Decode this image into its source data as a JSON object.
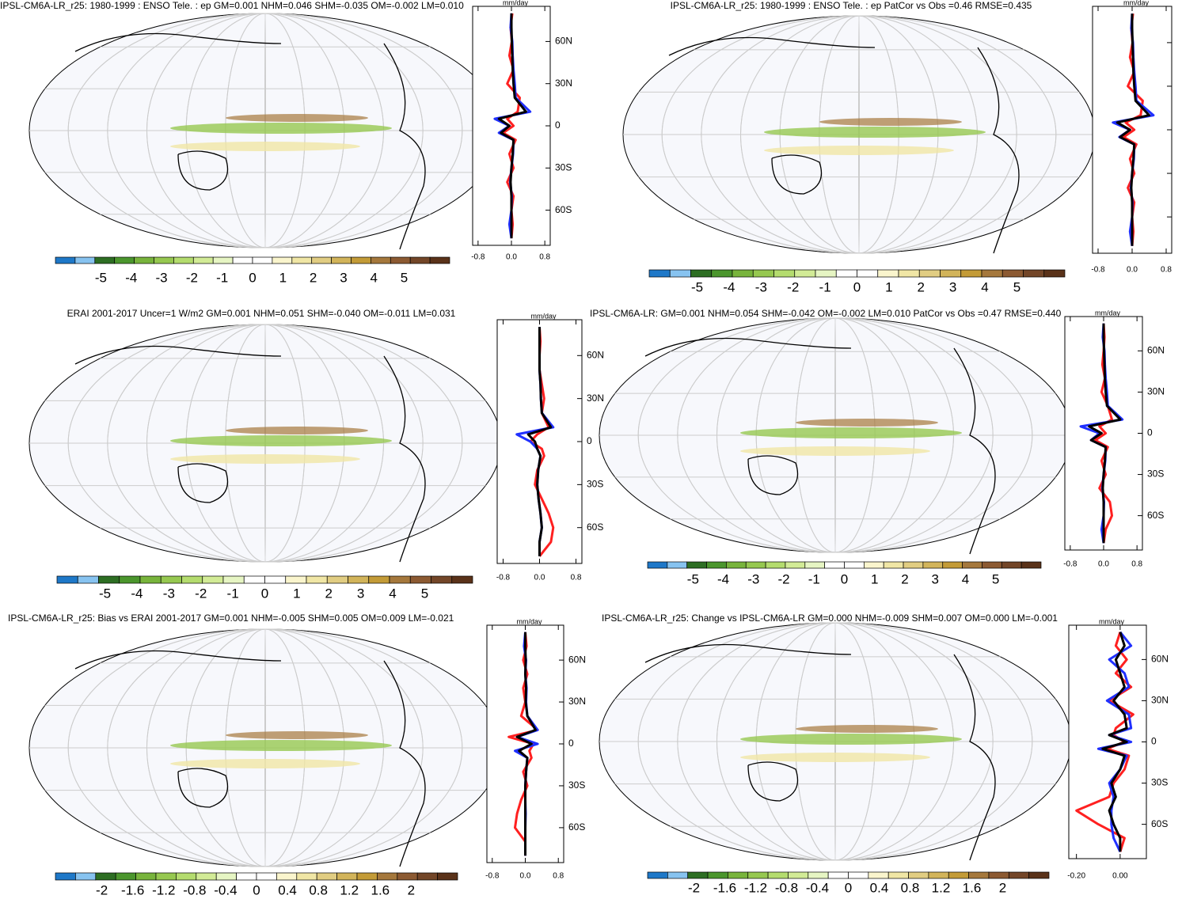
{
  "colorbar_colors": [
    "#1e78c8",
    "#87c3f0",
    "#2d6e23",
    "#4b962d",
    "#78b43c",
    "#96c850",
    "#b4dc6e",
    "#d2eb96",
    "#e6f5c3",
    "#ffffff",
    "#ffffff",
    "#faf5cd",
    "#f0e6a5",
    "#e1cd82",
    "#d2b45a",
    "#c39b37",
    "#a5783c",
    "#8c5a32",
    "#734628",
    "#5a3219"
  ],
  "lat": [
    80,
    70,
    60,
    50,
    40,
    30,
    20,
    10,
    5,
    0,
    -5,
    -10,
    -20,
    -30,
    -40,
    -50,
    -60,
    -70,
    -80
  ],
  "panels": [
    {
      "title": "IPSL-CM6A-LR_r25: 1980-1999 : ENSO Tele. : ep GM=0.001 NHM=0.046 SHM=-0.035 OM=-0.002 LM=0.010",
      "colorbar_labels": [
        -5,
        -4,
        -3,
        -2,
        -1,
        0,
        1,
        2,
        3,
        4,
        5
      ],
      "zonal": {
        "type": "line",
        "unit": "mm/day",
        "xlim": [
          -0.93,
          0.93
        ],
        "ylim": [
          -85,
          85
        ],
        "xticks": [
          -0.8,
          {
            "value": 0,
            "label": "0.0"
          },
          0.8
        ],
        "yticks": [
          {
            "value": 60,
            "label": "60N"
          },
          {
            "value": 30,
            "label": "30N"
          },
          0,
          {
            "value": -30,
            "label": "30S"
          },
          {
            "value": -60,
            "label": "60S"
          }
        ],
        "series": [
          {
            "color": "#ff2020",
            "values": [
              0.02,
              -0.02,
              0.01,
              -0.05,
              0.05,
              -0.1,
              0.2,
              0.15,
              -0.1,
              0.05,
              -0.2,
              0.1,
              -0.05,
              0.05,
              -0.1,
              0.05,
              0,
              0.03,
              0
            ]
          },
          {
            "color": "#2030ff",
            "values": [
              0,
              -0.02,
              0.02,
              0.03,
              0.05,
              0.08,
              0.1,
              0.45,
              -0.4,
              -0.05,
              -0.3,
              0.05,
              0.04,
              0,
              -0.03,
              0.01,
              0,
              -0.05,
              0
            ]
          },
          {
            "color": "#000000",
            "values": [
              0,
              0,
              0.01,
              0.02,
              0.03,
              0.05,
              0.08,
              0.35,
              -0.3,
              -0.05,
              -0.25,
              0.05,
              0.03,
              0,
              -0.02,
              0,
              0,
              0,
              0
            ]
          }
        ]
      }
    },
    {
      "title": "IPSL-CM6A-LR_r25: 1980-1999 : ENSO Tele. : ep PatCor vs Obs =0.46 RMSE=0.435",
      "colorbar_labels": [
        -5,
        -4,
        -3,
        -2,
        -1,
        0,
        1,
        2,
        3,
        4,
        5
      ],
      "zonal": {
        "type": "line",
        "unit": "mm/day",
        "ytick_labels": false,
        "xlim": [
          -0.93,
          0.93
        ],
        "ylim": [
          -85,
          85
        ],
        "xticks": [
          -0.8,
          {
            "value": 0,
            "label": "0.0"
          },
          0.8
        ],
        "yticks": [
          60,
          30,
          0,
          -30,
          -60
        ],
        "series": [
          {
            "color": "#ff2020",
            "values": [
              0.02,
              -0.02,
              0.01,
              -0.05,
              0.05,
              -0.1,
              0.25,
              0.2,
              -0.15,
              0.05,
              -0.2,
              0.1,
              -0.05,
              0.05,
              -0.1,
              0.05,
              0,
              0.03,
              0
            ]
          },
          {
            "color": "#2030ff",
            "values": [
              0,
              -0.02,
              0.02,
              0.03,
              0.05,
              0.08,
              0.1,
              0.5,
              -0.45,
              -0.05,
              -0.3,
              0.05,
              0.04,
              0,
              -0.03,
              0.01,
              0,
              -0.05,
              0
            ]
          },
          {
            "color": "#000000",
            "values": [
              0,
              0,
              0.01,
              0.02,
              0.03,
              0.05,
              0.08,
              0.4,
              -0.35,
              -0.05,
              -0.28,
              0.05,
              0.03,
              0,
              -0.02,
              0,
              0,
              0,
              0
            ]
          }
        ]
      }
    },
    {
      "title": "ERAI 2001-2017 Uncer=1 W/m2 GM=0.001 NHM=0.051 SHM=-0.040 OM=-0.011 LM=0.031",
      "colorbar_labels": [
        -5,
        -4,
        -3,
        -2,
        -1,
        0,
        1,
        2,
        3,
        4,
        5
      ],
      "zonal": {
        "type": "line",
        "unit": "mm/day",
        "xlim": [
          -0.93,
          0.93
        ],
        "ylim": [
          -85,
          85
        ],
        "xticks": [
          -0.8,
          {
            "value": 0,
            "label": "0.0"
          },
          0.8
        ],
        "yticks": [
          {
            "value": 60,
            "label": "60N"
          },
          {
            "value": 30,
            "label": "30N"
          },
          0,
          {
            "value": -30,
            "label": "30S"
          },
          {
            "value": -60,
            "label": "60S"
          }
        ],
        "series": [
          {
            "color": "#ff2020",
            "values": [
              0,
              0.02,
              0,
              0,
              0.05,
              0.1,
              0.05,
              0.2,
              -0.05,
              -0.2,
              0.05,
              0.1,
              -0.05,
              -0.1,
              0.05,
              0.2,
              0.3,
              0.25,
              0
            ]
          },
          {
            "color": "#2030ff",
            "values": [
              0,
              0,
              0,
              0,
              0.02,
              0.03,
              0.05,
              0.3,
              -0.5,
              -0.2,
              -0.05,
              0.02,
              -0.03,
              -0.05,
              -0.02,
              0.02,
              0.05,
              0,
              0
            ]
          },
          {
            "color": "#000000",
            "values": [
              0,
              0,
              0,
              0,
              0.02,
              0.03,
              0.05,
              0.25,
              -0.25,
              -0.1,
              -0.05,
              0.02,
              -0.03,
              -0.05,
              -0.02,
              0.02,
              0.05,
              0,
              0
            ]
          }
        ]
      }
    },
    {
      "title": "IPSL-CM6A-LR: GM=0.001 NHM=0.054 SHM=-0.042 OM=-0.002 LM=0.010 PatCor vs Obs =0.47 RMSE=0.440",
      "colorbar_labels": [
        -5,
        -4,
        -3,
        -2,
        -1,
        0,
        1,
        2,
        3,
        4,
        5
      ],
      "zonal": {
        "type": "line",
        "unit": "mm/day",
        "xlim": [
          -0.93,
          0.93
        ],
        "ylim": [
          -85,
          85
        ],
        "xticks": [
          -0.8,
          {
            "value": 0,
            "label": "0.0"
          },
          0.8
        ],
        "yticks": [
          {
            "value": 60,
            "label": "60N"
          },
          {
            "value": 30,
            "label": "30N"
          },
          0,
          {
            "value": -30,
            "label": "30S"
          },
          {
            "value": -60,
            "label": "60S"
          }
        ],
        "series": [
          {
            "color": "#ff2020",
            "values": [
              0,
              0.02,
              0,
              -0.03,
              0.03,
              -0.05,
              0.1,
              0.2,
              -0.1,
              0.05,
              -0.2,
              0.1,
              -0.05,
              0.05,
              -0.1,
              0.15,
              0.2,
              0.05,
              0
            ]
          },
          {
            "color": "#2030ff",
            "values": [
              0,
              -0.02,
              0.02,
              0.03,
              0.05,
              0.08,
              0.1,
              0.45,
              -0.55,
              -0.1,
              -0.3,
              0.05,
              0.04,
              0,
              -0.03,
              0.01,
              0,
              -0.05,
              0
            ]
          },
          {
            "color": "#000000",
            "values": [
              0,
              0,
              0.01,
              0.02,
              0.03,
              0.05,
              0.08,
              0.4,
              -0.35,
              -0.05,
              -0.3,
              0.05,
              0.03,
              0,
              -0.02,
              0,
              0,
              0,
              0
            ]
          }
        ]
      }
    },
    {
      "title": "IPSL-CM6A-LR_r25: Bias vs ERAI 2001-2017 GM=0.001 NHM=-0.005 SHM=0.005 OM=0.009 LM=-0.021",
      "colorbar_labels": [
        -2,
        -1.6,
        -1.2,
        -0.8,
        -0.4,
        0,
        0.4,
        0.8,
        1.2,
        1.6,
        2
      ],
      "zonal": {
        "type": "line",
        "unit": "mm/day",
        "xlim": [
          -0.93,
          0.93
        ],
        "ylim": [
          -85,
          85
        ],
        "xticks": [
          -0.8,
          {
            "value": 0,
            "label": "0.0"
          },
          0.8
        ],
        "yticks": [
          {
            "value": 60,
            "label": "60N"
          },
          {
            "value": 30,
            "label": "30N"
          },
          0,
          {
            "value": -30,
            "label": "30S"
          },
          {
            "value": -60,
            "label": "60S"
          }
        ],
        "series": [
          {
            "color": "#ff2020",
            "values": [
              0,
              0.03,
              -0.05,
              0.05,
              -0.05,
              0,
              -0.1,
              0.3,
              -0.4,
              0.2,
              0.1,
              0.15,
              -0.05,
              0.05,
              -0.1,
              -0.2,
              -0.25,
              0,
              0
            ]
          },
          {
            "color": "#2030ff",
            "values": [
              0,
              -0.03,
              0.02,
              0,
              0.03,
              0.02,
              0.05,
              0.3,
              -0.2,
              0.3,
              -0.25,
              0.05,
              0.02,
              0,
              0,
              0.01,
              0,
              0,
              0
            ]
          },
          {
            "color": "#000000",
            "values": [
              0,
              0,
              0.01,
              0,
              0.02,
              0.01,
              0.05,
              0.25,
              -0.2,
              0.15,
              -0.15,
              0.05,
              0.02,
              0,
              0,
              0,
              0,
              0,
              0
            ]
          }
        ]
      }
    },
    {
      "title": "IPSL-CM6A-LR_r25: Change vs IPSL-CM6A-LR GM=0.000 NHM=-0.009 SHM=0.007 OM=0.000 LM=-0.001",
      "colorbar_labels": [
        -2,
        -1.6,
        -1.2,
        -0.8,
        -0.4,
        0,
        0.4,
        0.8,
        1.2,
        1.6,
        2
      ],
      "zonal": {
        "type": "line",
        "unit": "mm/day",
        "xlim": [
          -0.235,
          0.12
        ],
        "ylim": [
          -85,
          85
        ],
        "xticks": [
          {
            "value": -0.2,
            "label": "-0.20"
          },
          {
            "value": 0,
            "label": "0.00"
          }
        ],
        "yticks": [
          {
            "value": 60,
            "label": "60N"
          },
          {
            "value": 30,
            "label": "30N"
          },
          0,
          {
            "value": -30,
            "label": "30S"
          },
          {
            "value": -60,
            "label": "60S"
          }
        ],
        "series": [
          {
            "color": "#ff2020",
            "values": [
              0,
              -0.02,
              0.03,
              -0.02,
              0.05,
              -0.05,
              0.06,
              -0.02,
              -0.03,
              0.02,
              -0.06,
              0.04,
              0.02,
              -0.03,
              -0.05,
              -0.2,
              -0.1,
              0.02,
              0
            ]
          },
          {
            "color": "#2030ff",
            "values": [
              0,
              0.05,
              -0.05,
              0.02,
              0.04,
              -0.06,
              0.04,
              0.05,
              -0.05,
              0.05,
              -0.1,
              0.03,
              0,
              -0.05,
              -0.03,
              -0.04,
              -0.04,
              -0.03,
              0
            ]
          },
          {
            "color": "#000000",
            "values": [
              0,
              0.02,
              -0.02,
              0,
              0.02,
              -0.03,
              0.02,
              0.03,
              -0.05,
              0.03,
              -0.08,
              0.02,
              0,
              -0.04,
              -0.02,
              -0.05,
              -0.03,
              0,
              0
            ]
          }
        ]
      }
    }
  ]
}
